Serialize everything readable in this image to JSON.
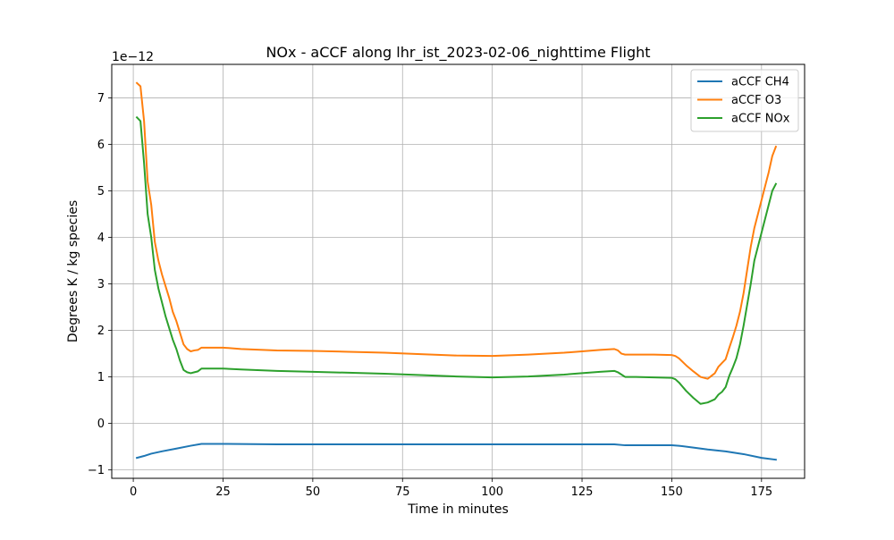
{
  "chart_data": {
    "type": "line",
    "title": "NOx - aCCF along lhr_ist_2023-02-06_nighttime Flight",
    "xlabel": "Time in minutes",
    "ylabel": "Degrees K / kg species",
    "y_offset_label": "1e−12",
    "xlim": [
      -6,
      187
    ],
    "ylim": [
      -1.18,
      7.72
    ],
    "xticks": [
      0,
      25,
      50,
      75,
      100,
      125,
      150,
      175
    ],
    "xtick_labels": [
      "0",
      "25",
      "50",
      "75",
      "100",
      "125",
      "150",
      "175"
    ],
    "yticks": [
      -1,
      0,
      1,
      2,
      3,
      4,
      5,
      6,
      7
    ],
    "ytick_labels": [
      "−1",
      "0",
      "1",
      "2",
      "3",
      "4",
      "5",
      "6",
      "7"
    ],
    "grid": true,
    "legend_position": "upper right",
    "series": [
      {
        "name": "aCCF CH4",
        "color": "#1f77b4",
        "x": [
          1,
          3,
          5,
          8,
          12,
          16,
          19,
          25,
          40,
          60,
          80,
          100,
          120,
          134,
          137,
          150,
          152,
          156,
          160,
          165,
          170,
          175,
          179
        ],
        "y": [
          -0.74,
          -0.7,
          -0.65,
          -0.6,
          -0.54,
          -0.48,
          -0.44,
          -0.44,
          -0.45,
          -0.45,
          -0.45,
          -0.45,
          -0.45,
          -0.45,
          -0.47,
          -0.47,
          -0.48,
          -0.52,
          -0.56,
          -0.6,
          -0.66,
          -0.74,
          -0.78
        ]
      },
      {
        "name": "aCCF O3",
        "color": "#ff7f0e",
        "x": [
          1,
          2,
          3,
          4,
          5,
          6,
          7,
          8,
          9,
          10,
          11,
          12,
          13,
          14,
          15,
          16,
          17,
          18,
          19,
          25,
          30,
          40,
          50,
          60,
          70,
          80,
          90,
          100,
          110,
          120,
          125,
          130,
          134,
          135,
          136,
          137,
          140,
          145,
          150,
          151,
          152,
          154,
          156,
          158,
          160,
          162,
          163,
          164,
          165,
          166,
          167,
          168,
          169,
          170,
          171,
          172,
          173,
          174,
          175,
          176,
          177,
          178,
          179
        ],
        "y": [
          7.32,
          7.25,
          6.5,
          5.2,
          4.7,
          3.9,
          3.5,
          3.2,
          2.95,
          2.7,
          2.4,
          2.2,
          1.95,
          1.7,
          1.6,
          1.55,
          1.57,
          1.58,
          1.63,
          1.63,
          1.6,
          1.57,
          1.56,
          1.54,
          1.52,
          1.49,
          1.46,
          1.45,
          1.48,
          1.52,
          1.55,
          1.58,
          1.6,
          1.57,
          1.5,
          1.48,
          1.48,
          1.48,
          1.47,
          1.45,
          1.4,
          1.25,
          1.12,
          1.0,
          0.96,
          1.08,
          1.22,
          1.3,
          1.38,
          1.62,
          1.85,
          2.1,
          2.4,
          2.8,
          3.3,
          3.8,
          4.2,
          4.5,
          4.8,
          5.1,
          5.4,
          5.75,
          5.95
        ]
      },
      {
        "name": "aCCF NOx",
        "color": "#2ca02c",
        "x": [
          1,
          2,
          3,
          4,
          5,
          6,
          7,
          8,
          9,
          10,
          11,
          12,
          13,
          14,
          15,
          16,
          17,
          18,
          19,
          25,
          30,
          40,
          50,
          60,
          70,
          80,
          90,
          100,
          110,
          120,
          125,
          130,
          134,
          135,
          136,
          137,
          140,
          145,
          150,
          151,
          152,
          154,
          156,
          158,
          160,
          162,
          163,
          164,
          165,
          166,
          167,
          168,
          169,
          170,
          171,
          172,
          173,
          174,
          175,
          176,
          177,
          178,
          179
        ],
        "y": [
          6.58,
          6.5,
          5.6,
          4.5,
          4.0,
          3.3,
          2.9,
          2.6,
          2.3,
          2.05,
          1.8,
          1.6,
          1.35,
          1.15,
          1.1,
          1.08,
          1.1,
          1.12,
          1.18,
          1.18,
          1.16,
          1.13,
          1.11,
          1.09,
          1.07,
          1.04,
          1.01,
          0.99,
          1.01,
          1.05,
          1.08,
          1.11,
          1.13,
          1.1,
          1.05,
          1.0,
          1.0,
          0.99,
          0.98,
          0.95,
          0.88,
          0.7,
          0.55,
          0.42,
          0.45,
          0.52,
          0.62,
          0.68,
          0.78,
          1.02,
          1.2,
          1.4,
          1.7,
          2.1,
          2.55,
          3.0,
          3.5,
          3.8,
          4.1,
          4.4,
          4.7,
          5.0,
          5.15
        ]
      }
    ]
  }
}
